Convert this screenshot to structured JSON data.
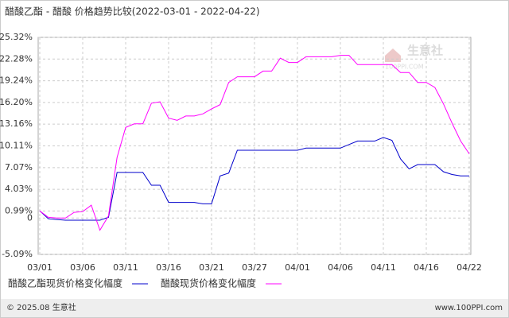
{
  "chart_data": {
    "type": "line",
    "title": "醋酸乙酯 - 醋酸 价格趋势比较(2022-03-01 - 2022-04-22)",
    "categories": [
      "03/01",
      null,
      null,
      null,
      null,
      "03/06",
      null,
      null,
      null,
      null,
      "03/11",
      null,
      null,
      null,
      null,
      "03/16",
      null,
      null,
      null,
      null,
      "03/21",
      null,
      null,
      null,
      null,
      "03/27",
      null,
      null,
      null,
      null,
      "04/01",
      null,
      null,
      null,
      null,
      "04/06",
      null,
      null,
      null,
      null,
      "04/11",
      null,
      null,
      null,
      null,
      "04/16",
      null,
      null,
      null,
      null,
      "04/22"
    ],
    "series": [
      {
        "name": "醋酸乙酯现货价格变化幅度",
        "color": "#0000cc",
        "values": [
          1.0,
          -0.1,
          -0.2,
          -0.3,
          -0.3,
          -0.3,
          -0.3,
          -0.3,
          0.1,
          6.4,
          6.4,
          6.4,
          6.4,
          4.6,
          4.6,
          2.2,
          2.2,
          2.2,
          2.2,
          2.0,
          2.0,
          5.9,
          6.3,
          9.5,
          9.5,
          9.5,
          9.5,
          9.5,
          9.5,
          9.5,
          9.5,
          9.8,
          9.8,
          9.8,
          9.8,
          9.8,
          10.3,
          10.8,
          10.8,
          10.8,
          11.3,
          10.9,
          8.3,
          6.9,
          7.5,
          7.5,
          7.5,
          6.5,
          6.1,
          5.9,
          5.9
        ]
      },
      {
        "name": "醋酸现货价格变化幅度",
        "color": "#ff00ff",
        "values": [
          1.0,
          0.1,
          0.0,
          0.0,
          0.8,
          0.9,
          1.8,
          -1.7,
          0.3,
          8.5,
          12.7,
          13.2,
          13.2,
          16.1,
          16.3,
          14.0,
          13.7,
          14.3,
          14.3,
          14.6,
          15.3,
          15.9,
          19.0,
          19.8,
          19.8,
          19.8,
          20.6,
          20.6,
          22.4,
          21.8,
          21.8,
          22.6,
          22.6,
          22.6,
          22.6,
          22.8,
          22.8,
          21.5,
          21.5,
          21.5,
          21.5,
          21.5,
          20.4,
          20.4,
          19.0,
          19.0,
          18.3,
          16.0,
          13.3,
          10.8,
          9.0
        ]
      }
    ],
    "ylim": [
      -5.09,
      25.32
    ],
    "yticks": [
      {
        "value": 25.32,
        "label": "25.32%"
      },
      {
        "value": 22.28,
        "label": "22.28%"
      },
      {
        "value": 19.24,
        "label": "19.24%"
      },
      {
        "value": 16.2,
        "label": "16.20%"
      },
      {
        "value": 13.16,
        "label": "13.16%"
      },
      {
        "value": 10.11,
        "label": "10.11%"
      },
      {
        "value": 7.07,
        "label": "7.07%"
      },
      {
        "value": 4.03,
        "label": "4.03%"
      },
      {
        "value": 0.99,
        "label": "0.99%"
      },
      0,
      {
        "value": -5.09,
        "label": "-5.09%"
      }
    ],
    "grid": true,
    "watermark": [
      "生意社",
      "100PPI.COM"
    ],
    "footer_left": "© 2025.08 生意社",
    "footer_right": "www.100PPI.com"
  }
}
